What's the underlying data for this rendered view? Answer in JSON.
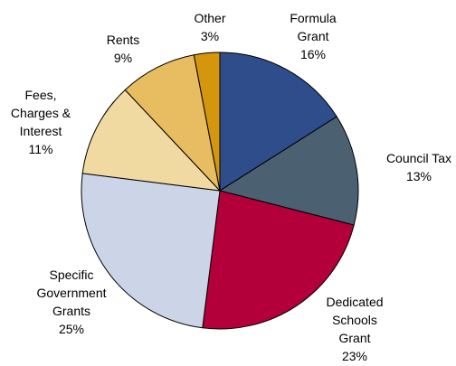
{
  "chart_data": {
    "type": "pie",
    "categories": [
      "Formula Grant",
      "Council Tax",
      "Dedicated Schools Grant",
      "Specific Government Grants",
      "Fees, Charges & Interest",
      "Rents",
      "Other"
    ],
    "values": [
      16,
      13,
      23,
      25,
      11,
      9,
      3
    ],
    "value_labels": [
      "16%",
      "13%",
      "23%",
      "25%",
      "11%",
      "9%",
      "3%"
    ],
    "colors": [
      "#2e4d8a",
      "#4b6172",
      "#b3003b",
      "#cbd5e7",
      "#f1d9a2",
      "#e8bc60",
      "#d4960c"
    ]
  }
}
